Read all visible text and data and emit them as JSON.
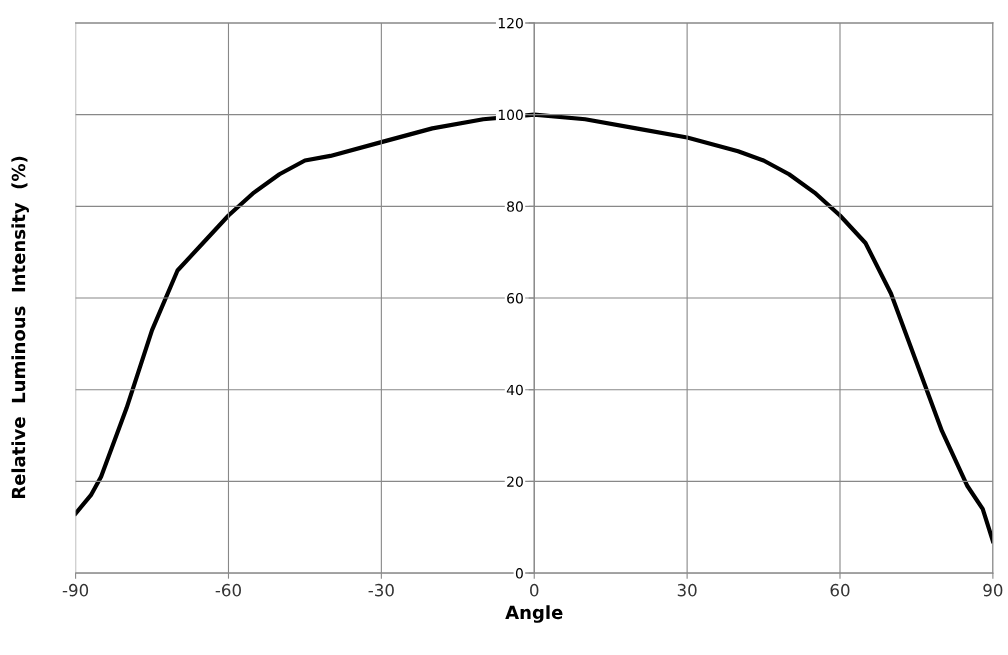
{
  "chart_data": {
    "type": "line",
    "xlabel": "Angle",
    "ylabel": "Relative  Luminous  Intensity  (%)",
    "x": [
      -90,
      -87,
      -85,
      -80,
      -75,
      -70,
      -65,
      -60,
      -55,
      -50,
      -45,
      -40,
      -30,
      -20,
      -10,
      0,
      10,
      20,
      30,
      40,
      45,
      50,
      55,
      60,
      65,
      70,
      75,
      80,
      85,
      88,
      90
    ],
    "series": [
      {
        "color": "#000000",
        "values": [
          13,
          17,
          21,
          36,
          53,
          66,
          72,
          78,
          83,
          87,
          90,
          91,
          94,
          97,
          99,
          100,
          99,
          97,
          95,
          92,
          90,
          87,
          83,
          78,
          72,
          61,
          46,
          31,
          19,
          14,
          7
        ]
      }
    ],
    "xlim": [
      -90,
      90
    ],
    "xticks": [
      -90,
      -60,
      -30,
      0,
      30,
      60,
      90
    ],
    "ylim": [
      0,
      120
    ],
    "yticks": [
      0,
      20,
      40,
      60,
      80,
      100,
      120
    ],
    "grid": true,
    "legend": false,
    "marker": "none",
    "line_style": "solid"
  }
}
